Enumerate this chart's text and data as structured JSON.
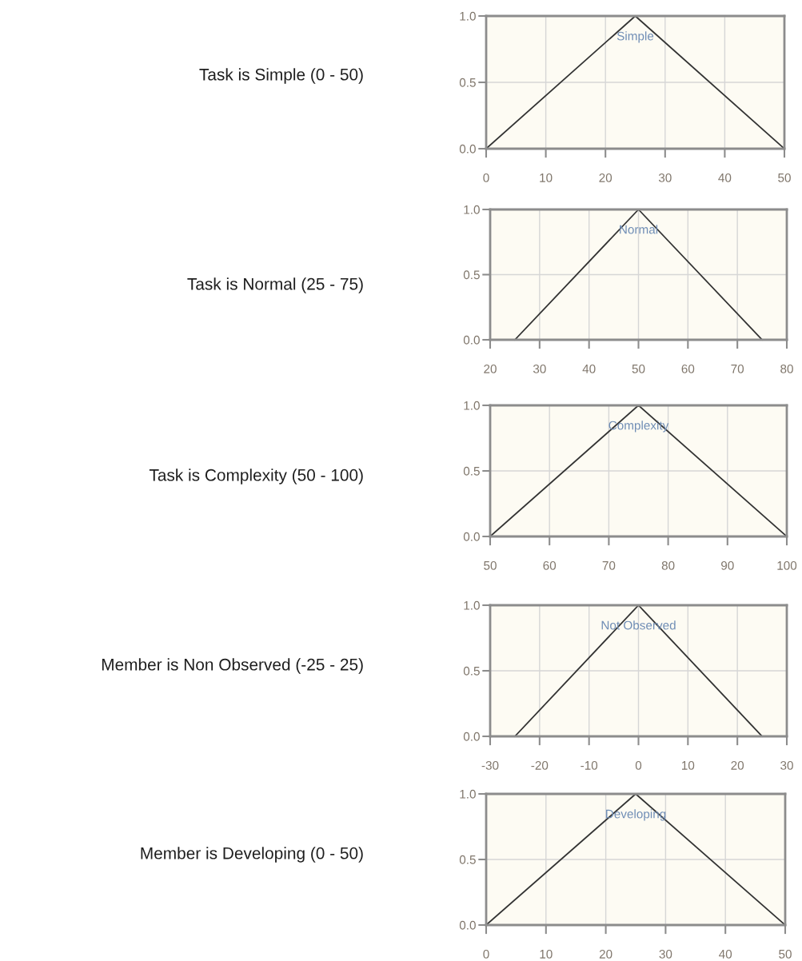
{
  "chart_data": [
    {
      "type": "line",
      "ylabel": "Task is Simple (0 - 50)",
      "series": [
        {
          "name": "Simple",
          "color": "#333333",
          "x": [
            0,
            25,
            50
          ],
          "values": [
            0,
            1,
            0
          ]
        }
      ],
      "xlim": [
        0,
        50
      ],
      "xticks": [
        0,
        10,
        20,
        30,
        40,
        50
      ],
      "ylim": [
        0,
        1
      ],
      "yticks": [
        {
          "value": 0,
          "label": "0.0"
        },
        {
          "value": 0.5,
          "label": "0.5"
        },
        {
          "value": 1,
          "label": "1.0"
        }
      ],
      "grid": true,
      "line_style": "solid"
    },
    {
      "type": "line",
      "ylabel": "Task is Normal (25 - 75)",
      "series": [
        {
          "name": "Normal",
          "color": "#333333",
          "x": [
            25,
            50,
            75
          ],
          "values": [
            0,
            1,
            0
          ]
        }
      ],
      "xlim": [
        20,
        80
      ],
      "xticks": [
        20,
        30,
        40,
        50,
        60,
        70,
        80
      ],
      "ylim": [
        0,
        1
      ],
      "yticks": [
        {
          "value": 0,
          "label": "0.0"
        },
        {
          "value": 0.5,
          "label": "0.5"
        },
        {
          "value": 1,
          "label": "1.0"
        }
      ],
      "grid": true,
      "line_style": "solid"
    },
    {
      "type": "line",
      "ylabel": "Task is Complexity (50 - 100)",
      "series": [
        {
          "name": "Complexity",
          "color": "#333333",
          "x": [
            50,
            75,
            100
          ],
          "values": [
            0,
            1,
            0
          ]
        }
      ],
      "xlim": [
        50,
        100
      ],
      "xticks": [
        50,
        60,
        70,
        80,
        90,
        100
      ],
      "ylim": [
        0,
        1
      ],
      "yticks": [
        {
          "value": 0,
          "label": "0.0"
        },
        {
          "value": 0.5,
          "label": "0.5"
        },
        {
          "value": 1,
          "label": "1.0"
        }
      ],
      "grid": true,
      "line_style": "solid"
    },
    {
      "type": "line",
      "ylabel": "Member is Non Observed (-25 - 25)",
      "series": [
        {
          "name": "Not Observed",
          "color": "#333333",
          "x": [
            -25,
            0,
            25
          ],
          "values": [
            0,
            1,
            0
          ]
        }
      ],
      "xlim": [
        -30,
        30
      ],
      "xticks": [
        -30,
        -20,
        -10,
        0,
        10,
        20,
        30
      ],
      "ylim": [
        0,
        1
      ],
      "yticks": [
        {
          "value": 0,
          "label": "0.0"
        },
        {
          "value": 0.5,
          "label": "0.5"
        },
        {
          "value": 1,
          "label": "1.0"
        }
      ],
      "grid": true,
      "line_style": "solid"
    },
    {
      "type": "line",
      "ylabel": "Member is Developing (0 - 50)",
      "series": [
        {
          "name": "Developing",
          "color": "#333333",
          "x": [
            0,
            25,
            50
          ],
          "values": [
            0,
            1,
            0
          ]
        }
      ],
      "xlim": [
        0,
        50
      ],
      "xticks": [
        0,
        10,
        20,
        30,
        40,
        50
      ],
      "ylim": [
        0,
        1
      ],
      "yticks": [
        {
          "value": 0,
          "label": "0.0"
        },
        {
          "value": 0.5,
          "label": "0.5"
        },
        {
          "value": 1,
          "label": "1.0"
        }
      ],
      "grid": true,
      "line_style": "solid"
    }
  ]
}
